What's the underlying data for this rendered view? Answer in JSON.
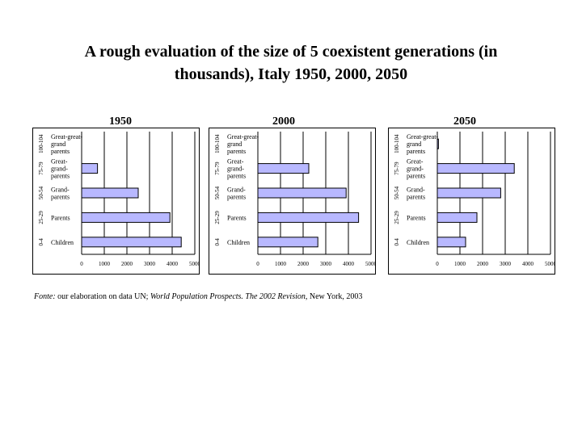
{
  "title": {
    "line1": "A rough evaluation of the size of 5 coexistent generations (in",
    "line2": "thousands), Italy 1950, 2000, 2050"
  },
  "source": {
    "prefix": "Fonte:",
    "text1": " our elaboration on data UN; ",
    "italic": "World Population Prospects. The 2002 Revision",
    "text2": ", New York, 2003"
  },
  "colors": {
    "bar_fill": "#b8b8ff",
    "bar_stroke": "#000000"
  },
  "chart_data": [
    {
      "type": "bar",
      "orientation": "horizontal",
      "title": "1950",
      "categories": [
        "Great-great-grand parents",
        "Great-grand-parents",
        "Grand-parents",
        "Parents",
        "Children"
      ],
      "age_groups": [
        "100-104",
        "75-79",
        "50-54",
        "25-29",
        "0-4"
      ],
      "values": [
        0,
        700,
        2500,
        3900,
        4400
      ],
      "xticks": [
        0,
        1000,
        2000,
        3000,
        4000,
        5000
      ],
      "xlim": [
        0,
        5000
      ],
      "grid": true
    },
    {
      "type": "bar",
      "orientation": "horizontal",
      "title": "2000",
      "categories": [
        "Great-great-grand parents",
        "Great-grand-parents",
        "Grand-parents",
        "Parents",
        "Children"
      ],
      "age_groups": [
        "100-104",
        "75-79",
        "50-54",
        "25-29",
        "0-4"
      ],
      "values": [
        0,
        2250,
        3900,
        4450,
        2650
      ],
      "xticks": [
        0,
        1000,
        2000,
        3000,
        4000,
        5000
      ],
      "xlim": [
        0,
        5000
      ],
      "grid": true
    },
    {
      "type": "bar",
      "orientation": "horizontal",
      "title": "2050",
      "categories": [
        "Great-great-grand parents",
        "Great-grand-parents",
        "Grand-parents",
        "Parents",
        "Children"
      ],
      "age_groups": [
        "100-104",
        "75-79",
        "50-54",
        "25-29",
        "0-4"
      ],
      "values": [
        50,
        3400,
        2800,
        1750,
        1250
      ],
      "xticks": [
        0,
        1000,
        2000,
        3000,
        4000,
        5000
      ],
      "xlim": [
        0,
        5000
      ],
      "grid": true
    }
  ]
}
